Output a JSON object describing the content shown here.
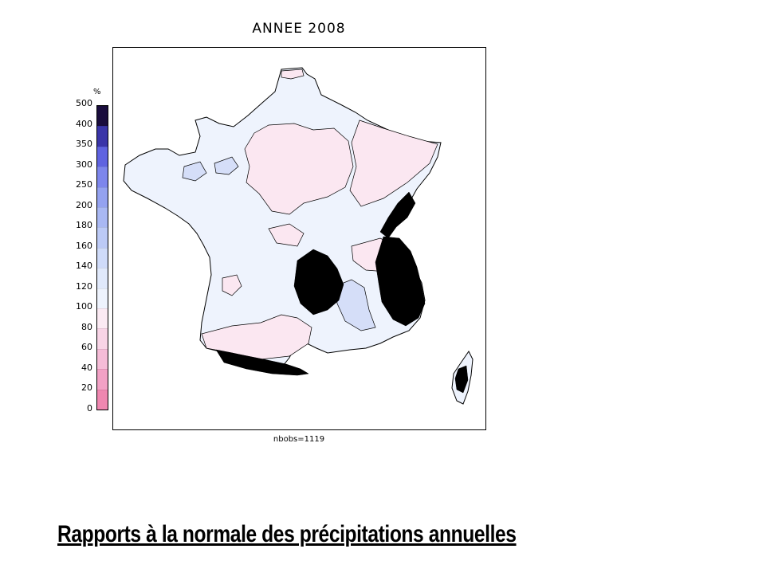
{
  "title": "ANNEE 2008",
  "colorbar": {
    "unit": "%",
    "ticks": [
      "500",
      "400",
      "350",
      "300",
      "250",
      "200",
      "180",
      "160",
      "140",
      "120",
      "100",
      "80",
      "60",
      "40",
      "20",
      "0"
    ],
    "colors": [
      "#1a0d3d",
      "#3a35a8",
      "#5f63e0",
      "#7d86ec",
      "#94a2f0",
      "#a9b8f3",
      "#bccaf6",
      "#cfdbf9",
      "#e0e9fb",
      "#eef3fd",
      "#fbeaf3",
      "#f8d4e6",
      "#f5bcd7",
      "#f2a1c5",
      "#ef87b0"
    ]
  },
  "legend_title_note": "",
  "nobs": "nbobs=1119",
  "caption": "Rapports à la normale des précipitations annuelles",
  "map": {
    "region": "France",
    "base_color": "#eef3fd",
    "deficit_color": "#fbe7f1",
    "excess_color": "#d5def8",
    "relief_color": "#000000"
  }
}
